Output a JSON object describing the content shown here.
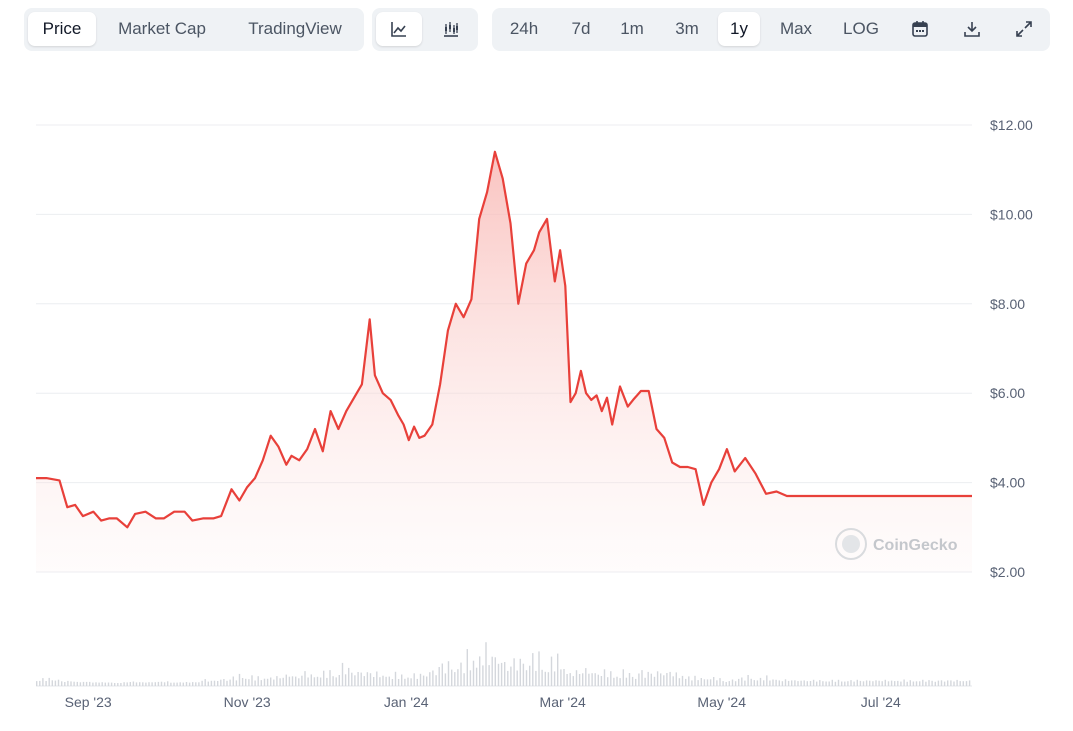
{
  "toolbar": {
    "view_tabs": [
      {
        "label": "Price",
        "active": true
      },
      {
        "label": "Market Cap",
        "active": false
      },
      {
        "label": "TradingView",
        "active": false
      }
    ],
    "chart_type_icons": [
      "line-chart-icon",
      "candlestick-chart-icon"
    ],
    "ranges": [
      {
        "label": "24h",
        "active": false
      },
      {
        "label": "7d",
        "active": false
      },
      {
        "label": "1m",
        "active": false
      },
      {
        "label": "3m",
        "active": false
      },
      {
        "label": "1y",
        "active": true
      },
      {
        "label": "Max",
        "active": false
      }
    ],
    "log_label": "LOG",
    "action_icons": [
      "calendar-icon",
      "download-icon",
      "fullscreen-icon"
    ]
  },
  "watermark": "CoinGecko",
  "colors": {
    "line": "#e8403a",
    "fill_top": "#fbd3d0",
    "grid": "#eceef1",
    "volume": "#d4d7dc"
  },
  "chart_data": {
    "type": "line",
    "title": "",
    "ylabel": "",
    "xlabel": "",
    "ylim": [
      2,
      12
    ],
    "yticks": [
      "$12.00",
      "$10.00",
      "$8.00",
      "$6.00",
      "$4.00",
      "$2.00"
    ],
    "ytick_values": [
      12,
      10,
      8,
      6,
      4,
      2
    ],
    "xticks": [
      "Sep '23",
      "Nov '23",
      "Jan '24",
      "Mar '24",
      "May '24",
      "Jul '24"
    ],
    "xtick_values": [
      "2023-09-01",
      "2023-11-01",
      "2024-01-01",
      "2024-03-01",
      "2024-05-01",
      "2024-07-01"
    ],
    "x_range": [
      "2023-08-12",
      "2024-08-05"
    ],
    "grid": true,
    "series": [
      {
        "values_x": [
          "2023-08-12",
          "2023-08-16",
          "2023-08-21",
          "2023-08-24",
          "2023-08-27",
          "2023-08-30",
          "2023-09-03",
          "2023-09-06",
          "2023-09-09",
          "2023-09-12",
          "2023-09-16",
          "2023-09-19",
          "2023-09-23",
          "2023-09-27",
          "2023-09-30",
          "2023-10-04",
          "2023-10-08",
          "2023-10-11",
          "2023-10-15",
          "2023-10-19",
          "2023-10-22",
          "2023-10-26",
          "2023-10-29",
          "2023-11-01",
          "2023-11-04",
          "2023-11-07",
          "2023-11-10",
          "2023-11-13",
          "2023-11-16",
          "2023-11-18",
          "2023-11-21",
          "2023-11-24",
          "2023-11-27",
          "2023-11-30",
          "2023-12-03",
          "2023-12-06",
          "2023-12-09",
          "2023-12-12",
          "2023-12-15",
          "2023-12-18",
          "2023-12-20",
          "2023-12-23",
          "2023-12-26",
          "2023-12-29",
          "2023-12-31",
          "2024-01-02",
          "2024-01-04",
          "2024-01-06",
          "2024-01-08",
          "2024-01-11",
          "2024-01-14",
          "2024-01-17",
          "2024-01-20",
          "2024-01-23",
          "2024-01-26",
          "2024-01-29",
          "2024-02-01",
          "2024-02-04",
          "2024-02-07",
          "2024-02-10",
          "2024-02-13",
          "2024-02-16",
          "2024-02-19",
          "2024-02-21",
          "2024-02-24",
          "2024-02-27",
          "2024-02-29",
          "2024-03-02",
          "2024-03-04",
          "2024-03-06",
          "2024-03-08",
          "2024-03-10",
          "2024-03-12",
          "2024-03-14",
          "2024-03-16",
          "2024-03-18",
          "2024-03-20",
          "2024-03-23",
          "2024-03-26",
          "2024-03-28",
          "2024-03-31",
          "2024-04-03",
          "2024-04-06",
          "2024-04-09",
          "2024-04-12",
          "2024-04-15",
          "2024-04-18",
          "2024-04-21",
          "2024-04-24",
          "2024-04-27",
          "2024-04-30",
          "2024-05-03",
          "2024-05-06",
          "2024-05-10",
          "2024-05-14",
          "2024-05-18",
          "2024-05-22",
          "2024-05-26",
          "2024-05-30",
          "2024-06-03",
          "2024-06-07",
          "2024-06-11",
          "2024-06-14",
          "2024-06-17",
          "2024-06-20",
          "2024-06-23",
          "2024-06-26",
          "2024-06-29",
          "2024-07-02",
          "2024-07-05",
          "2024-07-08",
          "2024-07-11",
          "2024-07-14",
          "2024-07-17",
          "2024-07-20",
          "2024-07-23",
          "2024-07-26",
          "2024-07-29",
          "2024-08-01",
          "2024-08-05"
        ],
        "values": [
          4.1,
          4.1,
          4.05,
          3.45,
          3.5,
          3.25,
          3.35,
          3.15,
          3.2,
          3.2,
          3.0,
          3.3,
          3.35,
          3.2,
          3.2,
          3.35,
          3.35,
          3.15,
          3.2,
          3.2,
          3.25,
          3.85,
          3.6,
          3.9,
          4.1,
          4.5,
          5.05,
          4.8,
          4.4,
          4.6,
          4.5,
          4.75,
          5.2,
          4.7,
          5.6,
          5.2,
          5.6,
          5.9,
          6.2,
          7.65,
          6.4,
          6.0,
          5.85,
          5.5,
          5.3,
          4.95,
          5.25,
          5.0,
          5.05,
          5.3,
          6.2,
          7.4,
          8.0,
          7.7,
          8.1,
          9.9,
          10.5,
          11.4,
          10.8,
          9.8,
          8.0,
          8.9,
          9.2,
          9.6,
          9.9,
          8.5,
          9.2,
          8.4,
          5.8,
          6.0,
          6.5,
          6.0,
          5.85,
          5.95,
          5.6,
          5.9,
          5.3,
          6.15,
          5.7,
          5.85,
          6.05,
          6.05,
          5.2,
          5.0,
          4.45,
          4.35,
          4.35,
          4.3,
          3.5,
          4.0,
          4.3,
          4.75,
          4.25,
          4.55,
          4.2,
          3.75,
          3.8,
          3.7,
          3.7,
          3.7,
          3.7,
          3.7,
          3.7,
          3.7,
          3.7,
          3.7,
          3.7,
          3.7,
          3.7,
          3.7,
          3.7,
          3.7,
          3.7,
          3.7,
          3.7,
          3.7,
          3.7,
          3.7,
          3.7,
          3.7
        ]
      }
    ]
  }
}
